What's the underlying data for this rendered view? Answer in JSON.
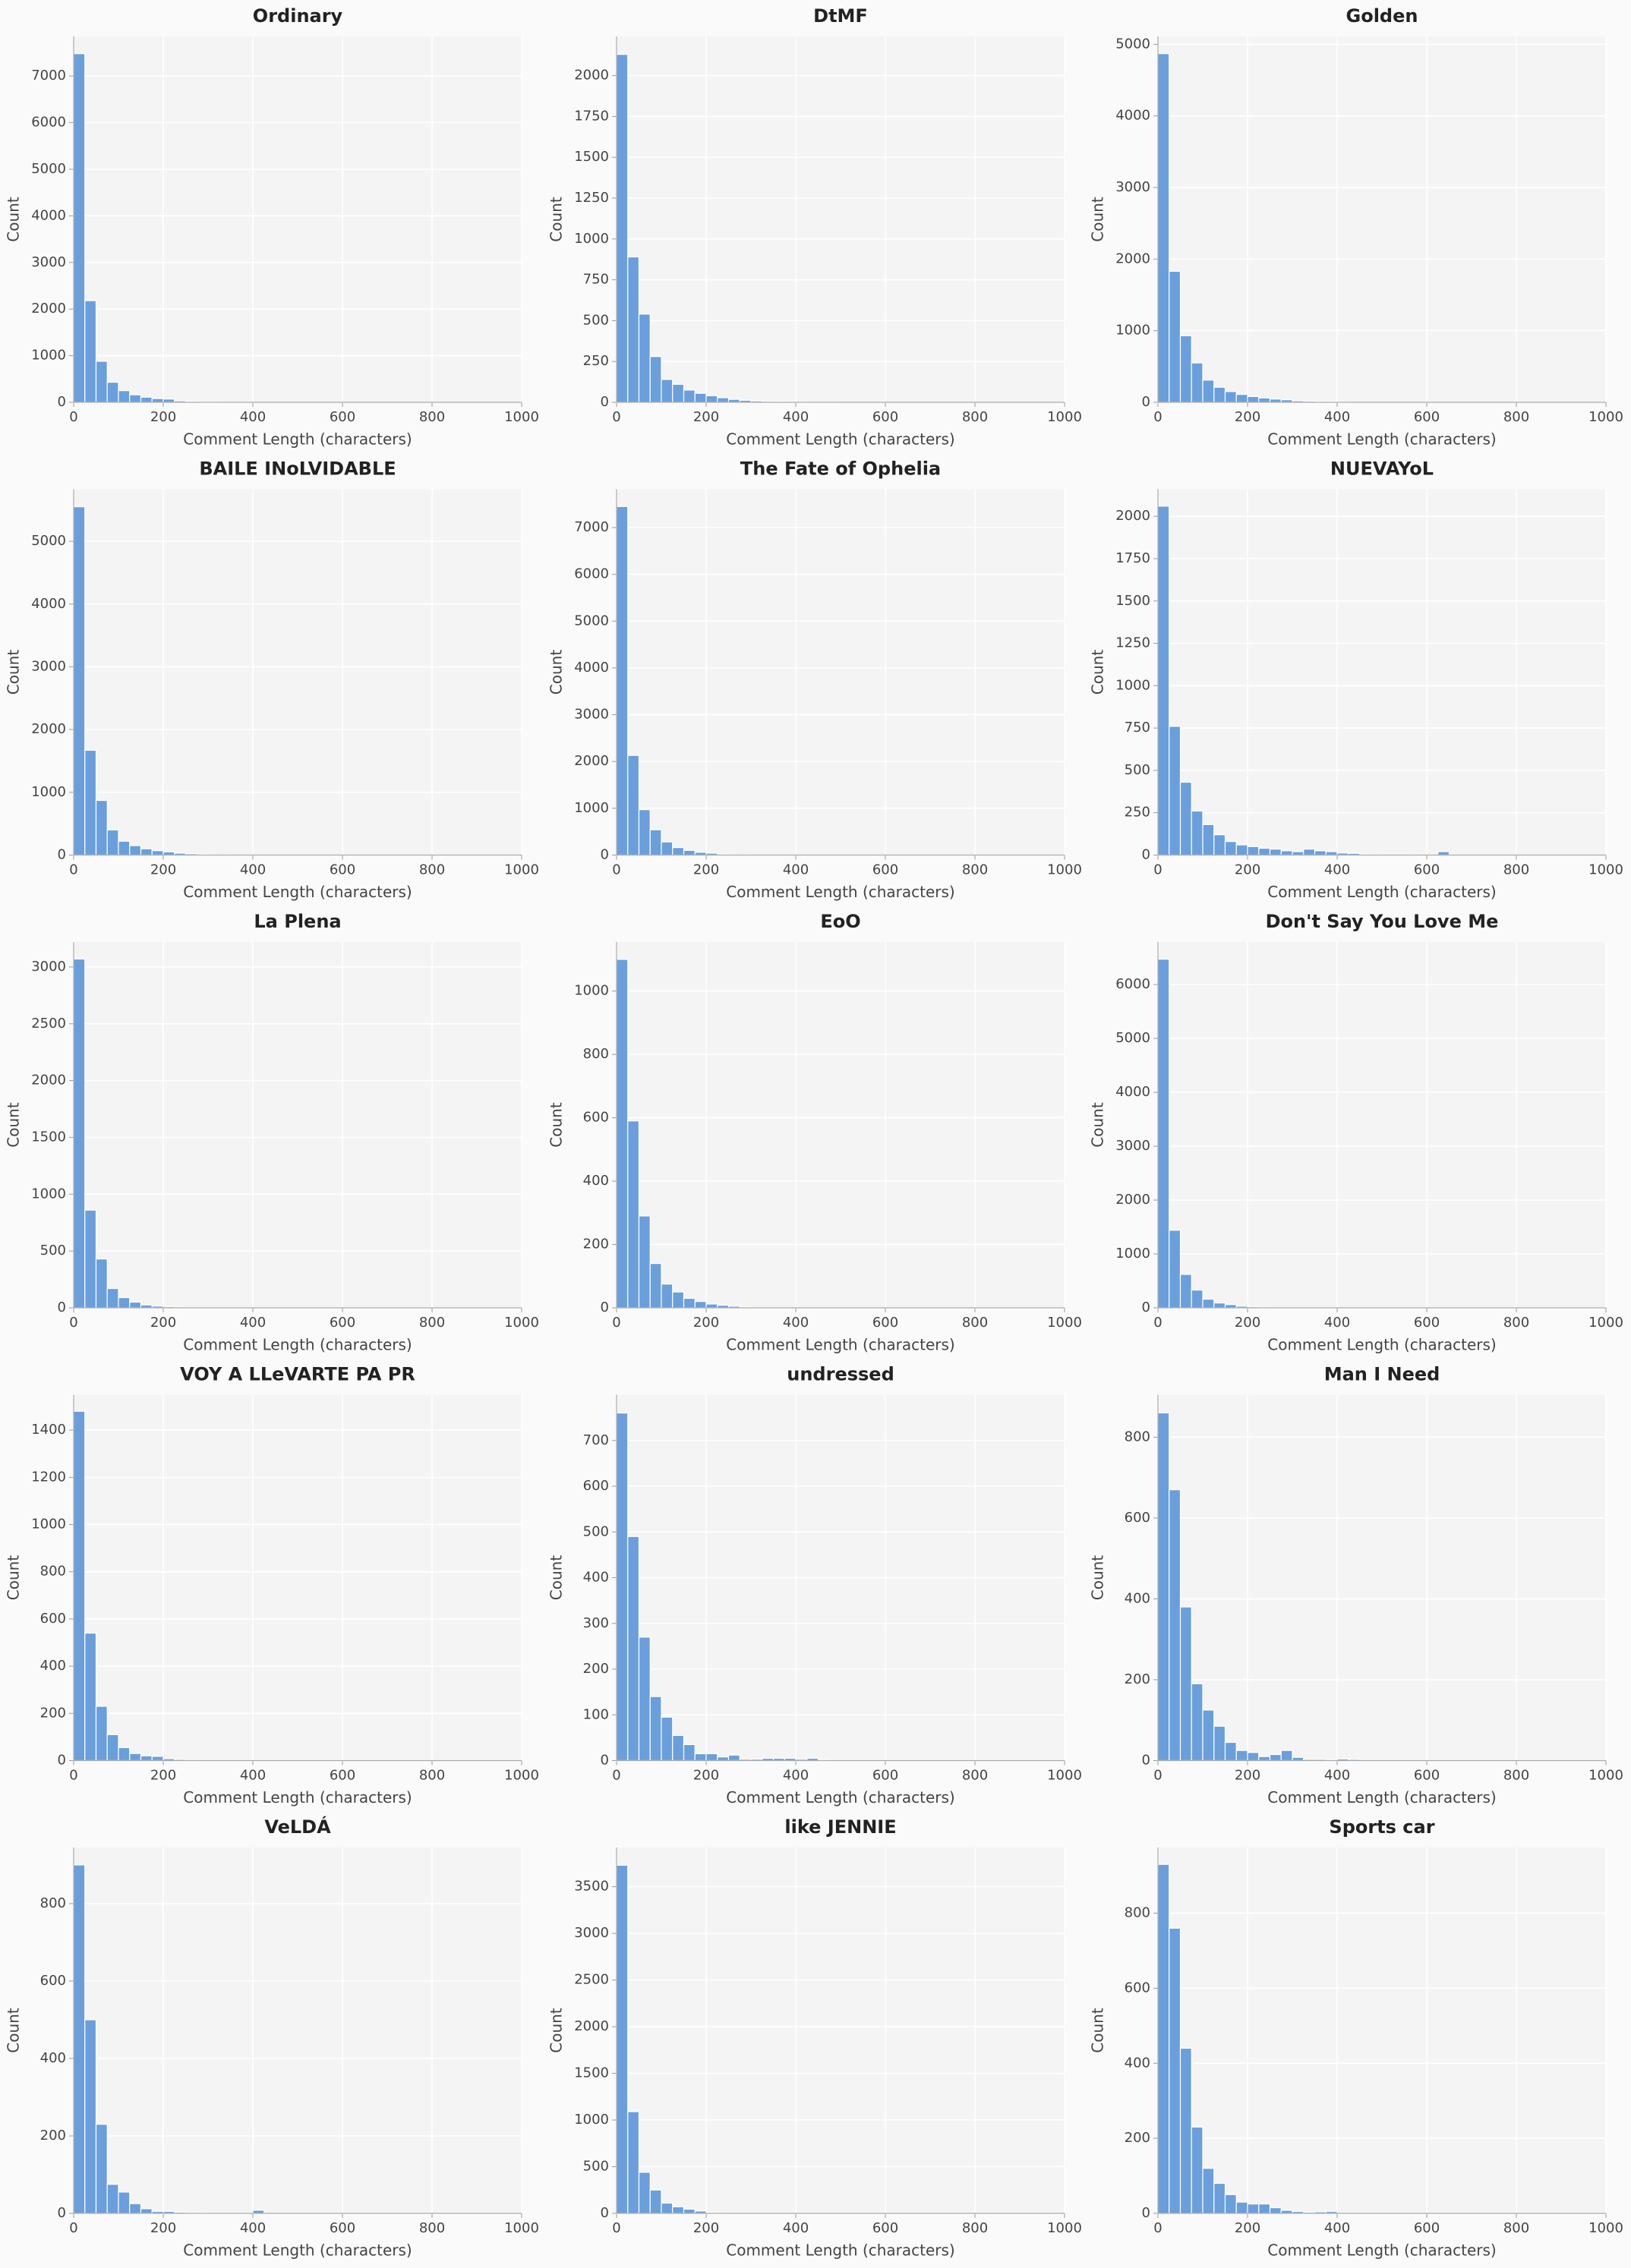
{
  "chart_data": [
    {
      "type": "histogram",
      "title": "Ordinary",
      "xlabel": "Comment Length (characters)",
      "ylabel": "Count",
      "color": "#6a9fdc",
      "grid": true,
      "bins": [
        0,
        25,
        50,
        75,
        100,
        125,
        150,
        175,
        200,
        225,
        250,
        275,
        300,
        325,
        350,
        375
      ],
      "counts": [
        7480,
        2180,
        880,
        430,
        250,
        160,
        110,
        80,
        70,
        30,
        20,
        10,
        10,
        5,
        5
      ],
      "xlim": [
        0,
        1000
      ],
      "xticks": [
        0,
        200,
        400,
        600,
        800,
        1000
      ],
      "ylim": [
        0,
        7850
      ],
      "yticks": [
        0,
        1000,
        2000,
        3000,
        4000,
        5000,
        6000,
        7000
      ]
    },
    {
      "type": "histogram",
      "title": "DtMF",
      "xlabel": "Comment Length (characters)",
      "ylabel": "Count",
      "color": "#6a9fdc",
      "grid": true,
      "bins": [
        0,
        25,
        50,
        75,
        100,
        125,
        150,
        175,
        200,
        225,
        250,
        275,
        300,
        325,
        350,
        375,
        400,
        425,
        450,
        475,
        500
      ],
      "counts": [
        2130,
        890,
        540,
        280,
        140,
        110,
        75,
        55,
        40,
        28,
        18,
        12,
        8,
        6,
        5,
        4,
        3,
        2,
        2,
        1
      ],
      "xlim": [
        0,
        1000
      ],
      "xticks": [
        0,
        200,
        400,
        600,
        800,
        1000
      ],
      "ylim": [
        0,
        2240
      ],
      "yticks": [
        0,
        250,
        500,
        750,
        1000,
        1250,
        1500,
        1750,
        2000
      ]
    },
    {
      "type": "histogram",
      "title": "Golden",
      "xlabel": "Comment Length (characters)",
      "ylabel": "Count",
      "color": "#6a9fdc",
      "grid": true,
      "bins": [
        0,
        25,
        50,
        75,
        100,
        125,
        150,
        175,
        200,
        225,
        250,
        275,
        300,
        325,
        350,
        375,
        400,
        425
      ],
      "counts": [
        4870,
        1830,
        930,
        550,
        310,
        210,
        150,
        110,
        80,
        60,
        45,
        35,
        20,
        15,
        10,
        8,
        5
      ],
      "xlim": [
        0,
        1000
      ],
      "xticks": [
        0,
        200,
        400,
        600,
        800,
        1000
      ],
      "ylim": [
        0,
        5110
      ],
      "yticks": [
        0,
        1000,
        2000,
        3000,
        4000,
        5000
      ]
    },
    {
      "type": "histogram",
      "title": "BAILE INoLVIDABLE",
      "xlabel": "Comment Length (characters)",
      "ylabel": "Count",
      "color": "#6a9fdc",
      "grid": true,
      "bins": [
        0,
        25,
        50,
        75,
        100,
        125,
        150,
        175,
        200,
        225,
        250,
        275,
        300,
        325,
        350
      ],
      "counts": [
        5550,
        1670,
        870,
        400,
        220,
        150,
        100,
        70,
        50,
        30,
        20,
        10,
        8,
        5
      ],
      "xlim": [
        0,
        1000
      ],
      "xticks": [
        0,
        200,
        400,
        600,
        800,
        1000
      ],
      "ylim": [
        0,
        5830
      ],
      "yticks": [
        0,
        1000,
        2000,
        3000,
        4000,
        5000
      ]
    },
    {
      "type": "histogram",
      "title": "The Fate of Ophelia",
      "xlabel": "Comment Length (characters)",
      "ylabel": "Count",
      "color": "#6a9fdc",
      "grid": true,
      "bins": [
        0,
        25,
        50,
        75,
        100,
        125,
        150,
        175,
        200,
        225,
        250,
        275,
        300
      ],
      "counts": [
        7450,
        2130,
        970,
        540,
        280,
        160,
        100,
        60,
        40,
        20,
        10,
        5
      ],
      "xlim": [
        0,
        1000
      ],
      "xticks": [
        0,
        200,
        400,
        600,
        800,
        1000
      ],
      "ylim": [
        0,
        7820
      ],
      "yticks": [
        0,
        1000,
        2000,
        3000,
        4000,
        5000,
        6000,
        7000
      ]
    },
    {
      "type": "histogram",
      "title": "NUEVAYoL",
      "xlabel": "Comment Length (characters)",
      "ylabel": "Count",
      "color": "#6a9fdc",
      "grid": true,
      "bins": [
        0,
        25,
        50,
        75,
        100,
        125,
        150,
        175,
        200,
        225,
        250,
        275,
        300,
        325,
        350,
        375,
        400,
        425,
        450,
        475,
        500,
        525,
        550,
        575,
        600,
        625,
        650
      ],
      "counts": [
        2060,
        760,
        430,
        260,
        180,
        120,
        80,
        60,
        50,
        40,
        35,
        25,
        20,
        35,
        25,
        20,
        12,
        10,
        5,
        3,
        2,
        2,
        3,
        2,
        1,
        20
      ],
      "xlim": [
        0,
        1000
      ],
      "xticks": [
        0,
        200,
        400,
        600,
        800,
        1000
      ],
      "ylim": [
        0,
        2160
      ],
      "yticks": [
        0,
        250,
        500,
        750,
        1000,
        1250,
        1500,
        1750,
        2000
      ]
    },
    {
      "type": "histogram",
      "title": "La Plena",
      "xlabel": "Comment Length (characters)",
      "ylabel": "Count",
      "color": "#6a9fdc",
      "grid": true,
      "bins": [
        0,
        25,
        50,
        75,
        100,
        125,
        150,
        175,
        200,
        225,
        250
      ],
      "counts": [
        3070,
        860,
        430,
        170,
        90,
        50,
        25,
        15,
        10,
        5
      ],
      "xlim": [
        0,
        1000
      ],
      "xticks": [
        0,
        200,
        400,
        600,
        800,
        1000
      ],
      "ylim": [
        0,
        3220
      ],
      "yticks": [
        0,
        500,
        1000,
        1500,
        2000,
        2500,
        3000
      ]
    },
    {
      "type": "histogram",
      "title": "EoO",
      "xlabel": "Comment Length (characters)",
      "ylabel": "Count",
      "color": "#6a9fdc",
      "grid": true,
      "bins": [
        0,
        25,
        50,
        75,
        100,
        125,
        150,
        175,
        200,
        225,
        250,
        275,
        300
      ],
      "counts": [
        1100,
        590,
        290,
        140,
        75,
        50,
        30,
        20,
        12,
        8,
        5,
        3
      ],
      "xlim": [
        0,
        1000
      ],
      "xticks": [
        0,
        200,
        400,
        600,
        800,
        1000
      ],
      "ylim": [
        0,
        1155
      ],
      "yticks": [
        0,
        200,
        400,
        600,
        800,
        1000
      ]
    },
    {
      "type": "histogram",
      "title": "Don't Say You Love Me",
      "xlabel": "Comment Length (characters)",
      "ylabel": "Count",
      "color": "#6a9fdc",
      "grid": true,
      "bins": [
        0,
        25,
        50,
        75,
        100,
        125,
        150,
        175,
        200,
        225,
        250
      ],
      "counts": [
        6470,
        1440,
        620,
        330,
        160,
        90,
        60,
        30,
        20,
        10
      ],
      "xlim": [
        0,
        1000
      ],
      "xticks": [
        0,
        200,
        400,
        600,
        800,
        1000
      ],
      "ylim": [
        0,
        6790
      ],
      "yticks": [
        0,
        1000,
        2000,
        3000,
        4000,
        5000,
        6000
      ]
    },
    {
      "type": "histogram",
      "title": "VOY A LLeVARTE PA PR",
      "xlabel": "Comment Length (characters)",
      "ylabel": "Count",
      "color": "#6a9fdc",
      "grid": true,
      "bins": [
        0,
        25,
        50,
        75,
        100,
        125,
        150,
        175,
        200,
        225,
        250,
        275
      ],
      "counts": [
        1480,
        540,
        230,
        110,
        55,
        30,
        20,
        18,
        8,
        5,
        3
      ],
      "xlim": [
        0,
        1000
      ],
      "xticks": [
        0,
        200,
        400,
        600,
        800,
        1000
      ],
      "ylim": [
        0,
        1550
      ],
      "yticks": [
        0,
        200,
        400,
        600,
        800,
        1000,
        1200,
        1400
      ]
    },
    {
      "type": "histogram",
      "title": "undressed",
      "xlabel": "Comment Length (characters)",
      "ylabel": "Count",
      "color": "#6a9fdc",
      "grid": true,
      "bins": [
        0,
        25,
        50,
        75,
        100,
        125,
        150,
        175,
        200,
        225,
        250,
        275,
        300,
        325,
        350,
        375,
        400,
        425,
        450,
        475
      ],
      "counts": [
        760,
        490,
        270,
        140,
        95,
        55,
        35,
        15,
        15,
        8,
        12,
        3,
        3,
        5,
        5,
        5,
        3,
        5,
        2
      ],
      "xlim": [
        0,
        1000
      ],
      "xticks": [
        0,
        200,
        400,
        600,
        800,
        1000
      ],
      "ylim": [
        0,
        800
      ],
      "yticks": [
        0,
        100,
        200,
        300,
        400,
        500,
        600,
        700
      ]
    },
    {
      "type": "histogram",
      "title": "Man I Need",
      "xlabel": "Comment Length (characters)",
      "ylabel": "Count",
      "color": "#6a9fdc",
      "grid": true,
      "bins": [
        0,
        25,
        50,
        75,
        100,
        125,
        150,
        175,
        200,
        225,
        250,
        275,
        300,
        325,
        350,
        375,
        400,
        425,
        450
      ],
      "counts": [
        860,
        670,
        380,
        190,
        125,
        85,
        45,
        25,
        20,
        10,
        15,
        25,
        8,
        3,
        3,
        2,
        4,
        3
      ],
      "xlim": [
        0,
        1000
      ],
      "xticks": [
        0,
        200,
        400,
        600,
        800,
        1000
      ],
      "ylim": [
        0,
        905
      ],
      "yticks": [
        0,
        200,
        400,
        600,
        800
      ]
    },
    {
      "type": "histogram",
      "title": "VeLDÁ",
      "xlabel": "Comment Length (characters)",
      "ylabel": "Count",
      "color": "#6a9fdc",
      "grid": true,
      "bins": [
        0,
        25,
        50,
        75,
        100,
        125,
        150,
        175,
        200,
        225,
        250,
        275,
        300,
        325,
        350,
        375,
        400,
        425
      ],
      "counts": [
        900,
        500,
        230,
        75,
        55,
        25,
        12,
        5,
        5,
        3,
        2,
        2,
        1,
        1,
        1,
        1,
        8
      ],
      "xlim": [
        0,
        1000
      ],
      "xticks": [
        0,
        200,
        400,
        600,
        800,
        1000
      ],
      "ylim": [
        0,
        945
      ],
      "yticks": [
        0,
        200,
        400,
        600,
        800
      ]
    },
    {
      "type": "histogram",
      "title": "like JENNIE",
      "xlabel": "Comment Length (characters)",
      "ylabel": "Count",
      "color": "#6a9fdc",
      "grid": true,
      "bins": [
        0,
        25,
        50,
        75,
        100,
        125,
        150,
        175,
        200,
        225,
        250
      ],
      "counts": [
        3730,
        1090,
        440,
        250,
        110,
        70,
        45,
        25,
        10,
        5
      ],
      "xlim": [
        0,
        1000
      ],
      "xticks": [
        0,
        200,
        400,
        600,
        800,
        1000
      ],
      "ylim": [
        0,
        3920
      ],
      "yticks": [
        0,
        500,
        1000,
        1500,
        2000,
        2500,
        3000,
        3500
      ]
    },
    {
      "type": "histogram",
      "title": "Sports car",
      "xlabel": "Comment Length (characters)",
      "ylabel": "Count",
      "color": "#6a9fdc",
      "grid": true,
      "bins": [
        0,
        25,
        50,
        75,
        100,
        125,
        150,
        175,
        200,
        225,
        250,
        275,
        300,
        325,
        350,
        375,
        400
      ],
      "counts": [
        930,
        760,
        440,
        230,
        120,
        80,
        50,
        30,
        25,
        25,
        15,
        8,
        5,
        3,
        4,
        5
      ],
      "xlim": [
        0,
        1000
      ],
      "xticks": [
        0,
        200,
        400,
        600,
        800,
        1000
      ],
      "ylim": [
        0,
        975
      ],
      "yticks": [
        0,
        200,
        400,
        600,
        800
      ]
    }
  ]
}
